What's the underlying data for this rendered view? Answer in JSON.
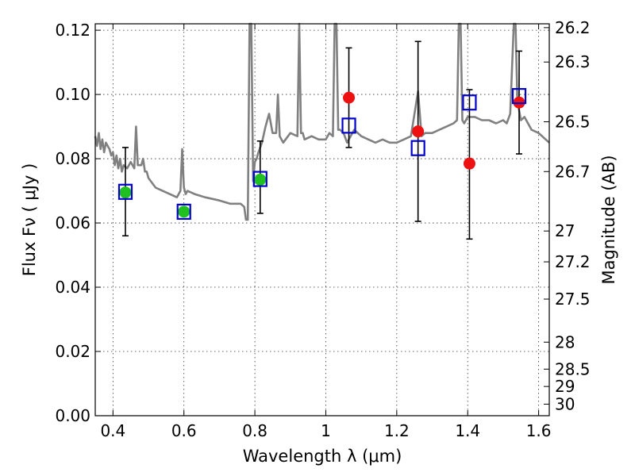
{
  "chart_data": {
    "type": "scatter",
    "title": "",
    "xlabel": "Wavelength  λ (μm)",
    "ylabel": "Flux  Fν  ( μJy )",
    "ylabel_right": "Magnitude (AB)",
    "xlim": [
      0.35,
      1.63
    ],
    "ylim": [
      0.0,
      0.122
    ],
    "grid": true,
    "x_ticks": [
      {
        "value": 0.4,
        "label": "0.4"
      },
      {
        "value": 0.6,
        "label": "0.6"
      },
      {
        "value": 0.8,
        "label": "0.8"
      },
      {
        "value": 1.0,
        "label": "1"
      },
      {
        "value": 1.2,
        "label": "1.2"
      },
      {
        "value": 1.4,
        "label": "1.4"
      },
      {
        "value": 1.6,
        "label": "1.6"
      }
    ],
    "y_ticks": [
      {
        "value": 0.0,
        "label": "0.00"
      },
      {
        "value": 0.02,
        "label": "0.02"
      },
      {
        "value": 0.04,
        "label": "0.04"
      },
      {
        "value": 0.06,
        "label": "0.06"
      },
      {
        "value": 0.08,
        "label": "0.08"
      },
      {
        "value": 0.1,
        "label": "0.10"
      },
      {
        "value": 0.12,
        "label": "0.12"
      }
    ],
    "right_ticks": [
      {
        "flux": 0.1208,
        "label": "26.2"
      },
      {
        "flux": 0.1101,
        "label": "26.3"
      },
      {
        "flux": 0.0915,
        "label": "26.5"
      },
      {
        "flux": 0.076,
        "label": "26.7"
      },
      {
        "flux": 0.0575,
        "label": "27"
      },
      {
        "flux": 0.0479,
        "label": "27.2"
      },
      {
        "flux": 0.0363,
        "label": "27.5"
      },
      {
        "flux": 0.0229,
        "label": "28"
      },
      {
        "flux": 0.0145,
        "label": "28.5"
      },
      {
        "flux": 0.0091,
        "label": "29"
      },
      {
        "flux": 0.0036,
        "label": "30"
      }
    ],
    "spectrum": {
      "color": "#808080",
      "x": [
        0.35,
        0.355,
        0.36,
        0.365,
        0.37,
        0.375,
        0.38,
        0.385,
        0.39,
        0.395,
        0.4,
        0.405,
        0.41,
        0.415,
        0.42,
        0.425,
        0.43,
        0.44,
        0.45,
        0.46,
        0.465,
        0.47,
        0.48,
        0.485,
        0.49,
        0.495,
        0.5,
        0.52,
        0.54,
        0.56,
        0.58,
        0.59,
        0.595,
        0.6,
        0.605,
        0.61,
        0.63,
        0.66,
        0.7,
        0.73,
        0.76,
        0.77,
        0.775,
        0.78,
        0.785,
        0.79,
        0.795,
        0.8,
        0.805,
        0.81,
        0.82,
        0.83,
        0.84,
        0.85,
        0.86,
        0.865,
        0.87,
        0.88,
        0.9,
        0.92,
        0.925,
        0.93,
        0.935,
        0.94,
        0.96,
        0.98,
        1.0,
        1.01,
        1.02,
        1.025,
        1.03,
        1.035,
        1.04,
        1.05,
        1.06,
        1.08,
        1.1,
        1.12,
        1.14,
        1.16,
        1.18,
        1.2,
        1.22,
        1.24,
        1.25,
        1.26,
        1.27,
        1.28,
        1.3,
        1.32,
        1.34,
        1.36,
        1.37,
        1.375,
        1.38,
        1.385,
        1.39,
        1.4,
        1.42,
        1.44,
        1.46,
        1.48,
        1.5,
        1.51,
        1.52,
        1.53,
        1.535,
        1.54,
        1.55,
        1.56,
        1.58,
        1.6,
        1.62,
        1.63
      ],
      "y": [
        0.087,
        0.084,
        0.088,
        0.083,
        0.086,
        0.082,
        0.085,
        0.084,
        0.083,
        0.081,
        0.082,
        0.078,
        0.081,
        0.077,
        0.08,
        0.076,
        0.078,
        0.077,
        0.079,
        0.077,
        0.09,
        0.078,
        0.078,
        0.08,
        0.076,
        0.076,
        0.074,
        0.071,
        0.07,
        0.069,
        0.068,
        0.07,
        0.083,
        0.071,
        0.069,
        0.07,
        0.069,
        0.068,
        0.067,
        0.066,
        0.066,
        0.065,
        0.061,
        0.061,
        0.122,
        0.122,
        0.073,
        0.079,
        0.08,
        0.082,
        0.085,
        0.09,
        0.094,
        0.088,
        0.088,
        0.1,
        0.087,
        0.085,
        0.088,
        0.087,
        0.122,
        0.088,
        0.088,
        0.086,
        0.087,
        0.086,
        0.086,
        0.088,
        0.087,
        0.122,
        0.122,
        0.089,
        0.089,
        0.088,
        0.085,
        0.089,
        0.087,
        0.086,
        0.085,
        0.086,
        0.085,
        0.085,
        0.086,
        0.087,
        0.094,
        0.101,
        0.087,
        0.088,
        0.088,
        0.089,
        0.09,
        0.091,
        0.092,
        0.122,
        0.122,
        0.092,
        0.091,
        0.093,
        0.093,
        0.092,
        0.092,
        0.091,
        0.092,
        0.091,
        0.094,
        0.122,
        0.122,
        0.098,
        0.092,
        0.093,
        0.089,
        0.088,
        0.086,
        0.085
      ]
    },
    "series": [
      {
        "marker": "circle",
        "color": "#20c020",
        "x": [
          0.435,
          0.6,
          0.815
        ],
        "y": [
          0.0695,
          0.0635,
          0.0735
        ],
        "err_low": [
          0.056,
          null,
          0.063
        ],
        "err_high": [
          0.0835,
          null,
          0.0855
        ]
      },
      {
        "marker": "circle",
        "color": "#ee1111",
        "x": [
          1.065,
          1.26,
          1.405,
          1.545
        ],
        "y": [
          0.099,
          0.0885,
          0.0785,
          0.0975
        ],
        "err_low": [
          0.0835,
          0.0605,
          0.055,
          0.0815
        ],
        "err_high": [
          0.1145,
          0.1165,
          0.1015,
          0.1135
        ]
      },
      {
        "marker": "square",
        "color": "#0000cc",
        "x": [
          0.435,
          0.6,
          0.815,
          1.065,
          1.26,
          1.405,
          1.545
        ],
        "y": [
          0.0697,
          0.0635,
          0.0737,
          0.0903,
          0.0833,
          0.0975,
          0.0995
        ]
      }
    ]
  }
}
